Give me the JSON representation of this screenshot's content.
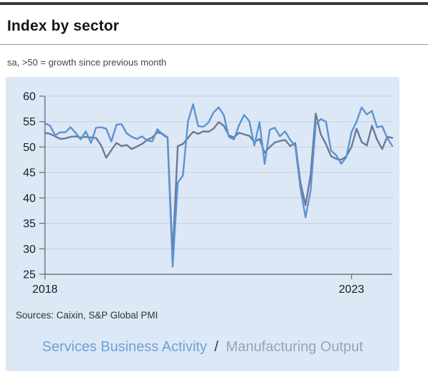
{
  "header": {
    "title": "Index by sector",
    "subtitle": "sa, >50 = growth since previous month"
  },
  "footer": {
    "sources": "Sources: Caixin, S&P Global PMI",
    "legend": {
      "series1": "Services Business Activity",
      "separator": "/",
      "series2": "Manufacturing Output"
    }
  },
  "colors": {
    "services_line": "#5b93d3",
    "manufacturing_line": "#6a7996",
    "legend_services": "#6f9fd8",
    "legend_manufacturing": "#94a3bc",
    "legend_separator": "#333333",
    "panel_bg": "#dce8f5",
    "gridline": "#c3cfdd",
    "axis": "#6e737a",
    "tick_label": "#1b1b1b",
    "top_bar": "#3b3b3b"
  },
  "chart_data": {
    "type": "line",
    "x_start": "2018-01",
    "x_end": "2023-09",
    "x_ticks": [
      {
        "label": "2018",
        "index": 0
      },
      {
        "label": "2023",
        "index": 60
      }
    ],
    "y_ticks": [
      25,
      30,
      35,
      40,
      45,
      50,
      55,
      60
    ],
    "ylim": [
      25,
      60
    ],
    "grid": true,
    "legend_position": "bottom-center",
    "series": [
      {
        "name": "Services Business Activity",
        "color": "#5b93d3",
        "values": [
          54.7,
          54.2,
          52.3,
          52.9,
          52.9,
          53.9,
          52.8,
          51.5,
          53.1,
          50.8,
          53.8,
          53.9,
          53.6,
          51.1,
          54.4,
          54.5,
          52.7,
          52.0,
          51.6,
          52.1,
          51.3,
          51.1,
          53.5,
          52.5,
          51.8,
          26.5,
          43.0,
          44.4,
          55.0,
          58.4,
          54.1,
          54.0,
          54.8,
          56.8,
          57.8,
          56.3,
          52.0,
          51.5,
          54.3,
          56.3,
          55.1,
          50.3,
          54.9,
          46.7,
          53.4,
          53.8,
          52.1,
          53.1,
          51.4,
          50.2,
          42.0,
          36.2,
          41.4,
          54.5,
          55.5,
          55.0,
          49.3,
          48.4,
          46.7,
          48.0,
          52.9,
          55.0,
          57.8,
          56.4,
          57.1,
          53.9,
          54.1,
          51.8,
          50.2
        ]
      },
      {
        "name": "Manufacturing Output",
        "color": "#6a7996",
        "values": [
          52.8,
          52.6,
          52.1,
          51.6,
          51.7,
          52.0,
          52.1,
          51.9,
          52.0,
          51.9,
          51.8,
          50.3,
          47.9,
          49.4,
          50.8,
          50.2,
          50.4,
          49.6,
          50.1,
          50.6,
          51.4,
          51.9,
          52.9,
          52.6,
          51.9,
          28.6,
          50.2,
          50.6,
          51.8,
          53.0,
          52.6,
          53.1,
          53.0,
          53.6,
          54.9,
          54.2,
          52.3,
          51.9,
          52.8,
          52.5,
          52.2,
          51.0,
          51.6,
          48.9,
          50.0,
          50.9,
          51.2,
          51.4,
          50.2,
          50.8,
          43.1,
          38.6,
          44.5,
          56.6,
          52.5,
          50.6,
          48.2,
          47.7,
          47.5,
          48.2,
          50.0,
          53.6,
          51.0,
          50.3,
          54.2,
          51.5,
          49.6,
          52.0,
          51.8
        ]
      }
    ]
  }
}
